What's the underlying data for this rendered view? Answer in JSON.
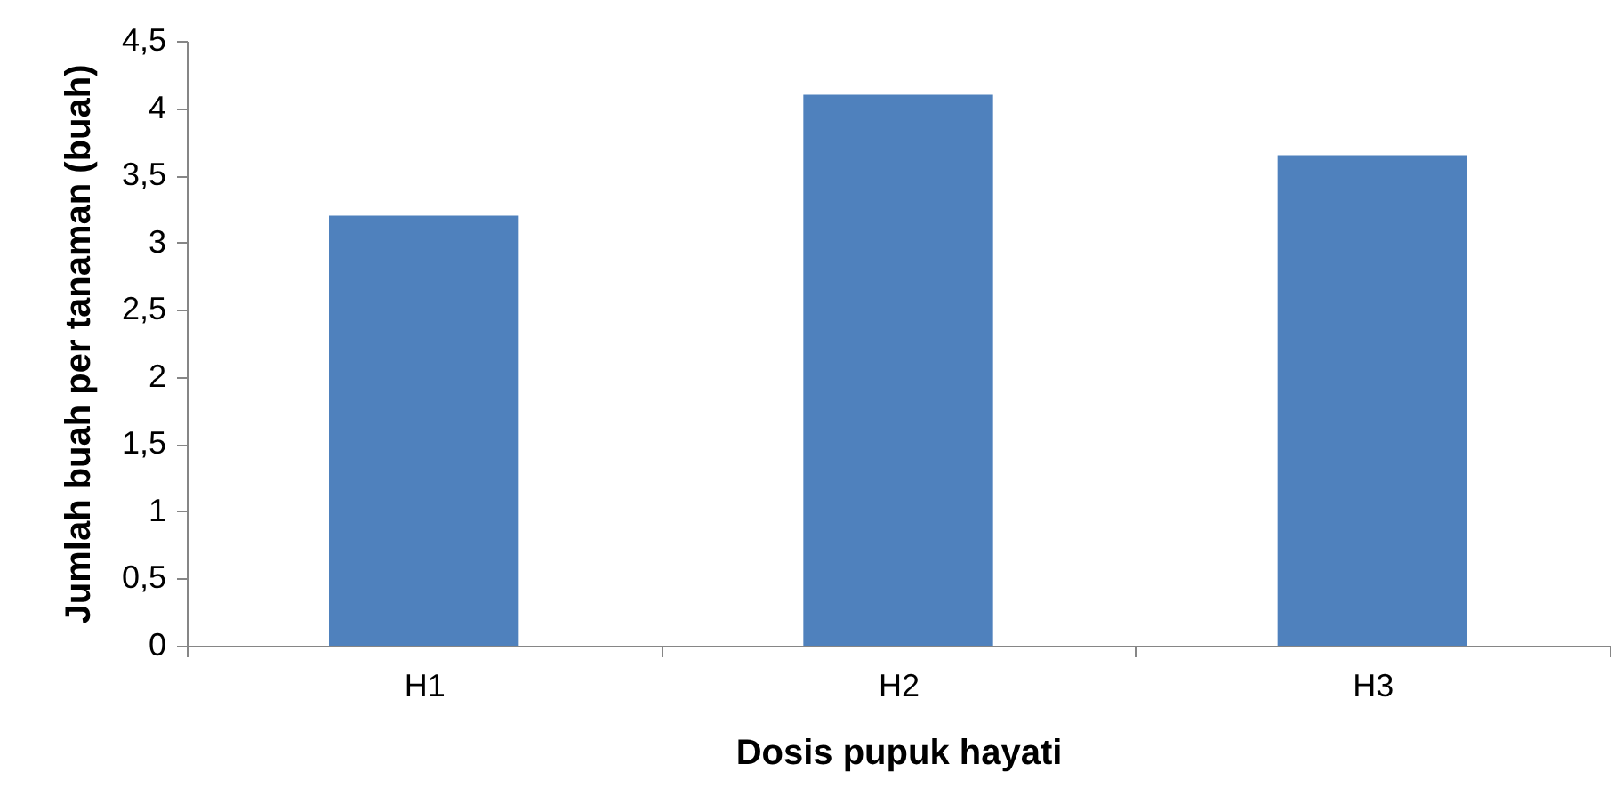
{
  "chart_data": {
    "type": "bar",
    "xlabel": "Dosis pupuk hayati",
    "ylabel": "Jumlah buah per tanaman (buah)",
    "categories": [
      "H1",
      "H2",
      "H3"
    ],
    "values": [
      3.2,
      4.1,
      3.65
    ],
    "color": "#4f81bd",
    "ylim": [
      0,
      4.5
    ],
    "yticks": [
      0,
      {
        "value": 0.5,
        "label": "0,5"
      },
      1,
      {
        "value": 1.5,
        "label": "1,5"
      },
      2,
      {
        "value": 2.5,
        "label": "2,5"
      },
      3,
      {
        "value": 3.5,
        "label": "3,5"
      },
      4,
      {
        "value": 4.5,
        "label": "4,5"
      }
    ],
    "grid": false
  }
}
